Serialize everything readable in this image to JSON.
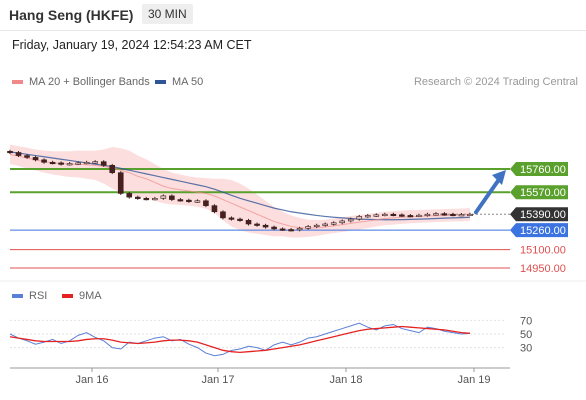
{
  "header": {
    "symbol": "Hang Seng (HKFE)",
    "timeframe": "30 MIN"
  },
  "datetime": "Friday, January 19, 2024 12:54:23 AM CET",
  "legend": {
    "ma20": {
      "label": "MA 20 + Bollinger Bands",
      "color": "#f08a8a"
    },
    "ma50": {
      "label": "MA 50",
      "color": "#2f5597"
    }
  },
  "credit": "Research © 2024 Trading Central",
  "rsi_legend": {
    "rsi": {
      "label": "RSI",
      "color": "#5b7fd6"
    },
    "ma9": {
      "label": "9MA",
      "color": "#e52222"
    }
  },
  "x_axis_labels": [
    "Jan 16",
    "Jan 17",
    "Jan 18",
    "Jan 19"
  ],
  "chart_data": [
    {
      "type": "line",
      "title": "Hang Seng (HKFE) 30 MIN",
      "y_range": [
        14900,
        16000
      ],
      "levels": [
        {
          "value": 15760,
          "label": "15760.00",
          "color": "#5aa02c",
          "kind": "resistance"
        },
        {
          "value": 15570,
          "label": "15570.00",
          "color": "#5aa02c",
          "kind": "resistance"
        },
        {
          "value": 15390,
          "label": "15390.00",
          "color": "#333333",
          "kind": "last price"
        },
        {
          "value": 15260,
          "label": "15260.00",
          "color": "#3b73e0",
          "kind": "pivot"
        },
        {
          "value": 15100,
          "label": "15100.00",
          "color": "#e05050",
          "kind": "support"
        },
        {
          "value": 14950,
          "label": "14950.00",
          "color": "#e05050",
          "kind": "support"
        }
      ],
      "series": [
        {
          "name": "Price",
          "values": [
            15895,
            15870,
            15855,
            15835,
            15815,
            15810,
            15800,
            15805,
            15810,
            15815,
            15820,
            15790,
            15730,
            15560,
            15530,
            15520,
            15515,
            15520,
            15540,
            15510,
            15505,
            15495,
            15500,
            15460,
            15410,
            15360,
            15350,
            15340,
            15310,
            15300,
            15285,
            15270,
            15265,
            15262,
            15275,
            15290,
            15300,
            15310,
            15320,
            15335,
            15350,
            15372,
            15380,
            15385,
            15390,
            15385,
            15380,
            15378,
            15382,
            15390,
            15395,
            15390,
            15385,
            15388,
            15390
          ]
        },
        {
          "name": "MA 20",
          "values": [
            15880,
            15865,
            15850,
            15835,
            15820,
            15810,
            15805,
            15800,
            15800,
            15795,
            15790,
            15780,
            15770,
            15750,
            15730,
            15700,
            15680,
            15650,
            15620,
            15600,
            15590,
            15580,
            15570,
            15560,
            15540,
            15510,
            15480,
            15450,
            15420,
            15390,
            15360,
            15330,
            15310,
            15290,
            15280,
            15275,
            15278,
            15285,
            15295,
            15305,
            15315,
            15325,
            15335,
            15345,
            15355,
            15360,
            15365,
            15370,
            15372,
            15375,
            15378,
            15380,
            15382,
            15385,
            15388
          ]
        },
        {
          "name": "MA 50",
          "values": [
            15900,
            15890,
            15880,
            15870,
            15860,
            15850,
            15840,
            15830,
            15820,
            15810,
            15800,
            15790,
            15780,
            15765,
            15750,
            15735,
            15720,
            15705,
            15690,
            15675,
            15660,
            15645,
            15630,
            15615,
            15595,
            15570,
            15545,
            15520,
            15500,
            15480,
            15460,
            15440,
            15425,
            15410,
            15400,
            15390,
            15380,
            15372,
            15365,
            15360,
            15355,
            15350,
            15348,
            15346,
            15345,
            15345,
            15346,
            15348,
            15350,
            15352,
            15355,
            15358,
            15360,
            15362,
            15365
          ]
        }
      ],
      "bollinger_band_width": [
        80,
        80,
        85,
        85,
        90,
        95,
        100,
        105,
        110,
        115,
        120,
        140,
        170,
        180,
        180,
        170,
        160,
        150,
        140,
        130,
        125,
        120,
        120,
        125,
        140,
        170,
        190,
        190,
        180,
        160,
        140,
        120,
        100,
        90,
        80,
        70,
        65,
        60,
        60,
        60,
        60,
        60,
        58,
        56,
        55,
        55,
        54,
        54,
        53,
        53,
        52,
        52,
        52,
        52,
        52
      ],
      "annotation": {
        "type": "arrow",
        "from": 15390,
        "to": 15760,
        "color": "#3f72c0"
      }
    },
    {
      "type": "line",
      "title": "RSI",
      "y_range": [
        0,
        100
      ],
      "y_ticks": [
        30,
        50,
        70
      ],
      "series": [
        {
          "name": "RSI",
          "values": [
            50,
            44,
            40,
            35,
            38,
            42,
            36,
            40,
            48,
            52,
            45,
            40,
            30,
            28,
            38,
            36,
            40,
            44,
            46,
            40,
            42,
            35,
            30,
            22,
            18,
            20,
            26,
            28,
            32,
            30,
            26,
            34,
            38,
            34,
            38,
            44,
            46,
            50,
            54,
            58,
            62,
            66,
            60,
            56,
            62,
            64,
            58,
            55,
            52,
            60,
            58,
            54,
            52,
            50,
            51
          ]
        },
        {
          "name": "9MA",
          "values": [
            46,
            44,
            42,
            40,
            39,
            39,
            39,
            39,
            40,
            42,
            43,
            43,
            41,
            38,
            37,
            36,
            37,
            38,
            40,
            41,
            41,
            40,
            38,
            34,
            30,
            26,
            24,
            23,
            24,
            25,
            26,
            28,
            30,
            32,
            34,
            37,
            40,
            43,
            46,
            49,
            52,
            55,
            57,
            58,
            59,
            60,
            61,
            60,
            59,
            58,
            57,
            56,
            54,
            52,
            51
          ]
        }
      ]
    }
  ]
}
